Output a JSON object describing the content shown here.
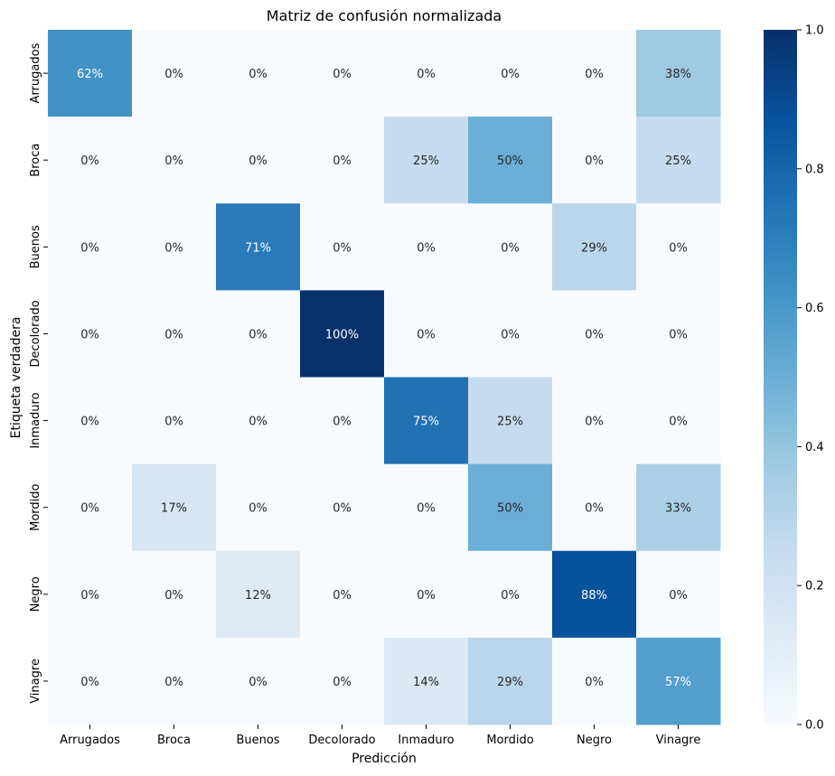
{
  "chart_data": {
    "type": "heatmap",
    "title": "Matriz de confusión normalizada",
    "xlabel": "Predicción",
    "ylabel": "Etiqueta verdadera",
    "x_categories": [
      "Arrugados",
      "Broca",
      "Buenos",
      "Decolorado",
      "Inmaduro",
      "Mordido",
      "Negro",
      "Vinagre"
    ],
    "y_categories": [
      "Arrugados",
      "Broca",
      "Buenos",
      "Decolorado",
      "Inmaduro",
      "Mordido",
      "Negro",
      "Vinagre"
    ],
    "values": [
      [
        0.625,
        0,
        0,
        0,
        0,
        0,
        0,
        0.375
      ],
      [
        0,
        0,
        0,
        0,
        0.25,
        0.5,
        0,
        0.25
      ],
      [
        0,
        0,
        0.714,
        0,
        0,
        0,
        0.286,
        0
      ],
      [
        0,
        0,
        0,
        1.0,
        0,
        0,
        0,
        0
      ],
      [
        0,
        0,
        0,
        0,
        0.75,
        0.25,
        0,
        0
      ],
      [
        0,
        0.167,
        0,
        0,
        0,
        0.5,
        0,
        0.333
      ],
      [
        0,
        0,
        0.125,
        0,
        0,
        0,
        0.875,
        0
      ],
      [
        0,
        0,
        0,
        0,
        0.143,
        0.286,
        0,
        0.571
      ]
    ],
    "annotations": [
      [
        "62%",
        "0%",
        "0%",
        "0%",
        "0%",
        "0%",
        "0%",
        "38%"
      ],
      [
        "0%",
        "0%",
        "0%",
        "0%",
        "25%",
        "50%",
        "0%",
        "25%"
      ],
      [
        "0%",
        "0%",
        "71%",
        "0%",
        "0%",
        "0%",
        "29%",
        "0%"
      ],
      [
        "0%",
        "0%",
        "0%",
        "100%",
        "0%",
        "0%",
        "0%",
        "0%"
      ],
      [
        "0%",
        "0%",
        "0%",
        "0%",
        "75%",
        "25%",
        "0%",
        "0%"
      ],
      [
        "0%",
        "17%",
        "0%",
        "0%",
        "0%",
        "50%",
        "0%",
        "33%"
      ],
      [
        "0%",
        "0%",
        "12%",
        "0%",
        "0%",
        "0%",
        "88%",
        "0%"
      ],
      [
        "0%",
        "0%",
        "0%",
        "0%",
        "14%",
        "29%",
        "0%",
        "57%"
      ]
    ],
    "colorbar": {
      "range": [
        0,
        1
      ],
      "ticks": [
        0.0,
        0.2,
        0.4,
        0.6,
        0.8,
        1.0
      ],
      "tick_labels": [
        "0.0",
        "0.2",
        "0.4",
        "0.6",
        "0.8",
        "1.0"
      ]
    },
    "colormap": [
      "#f7fbff",
      "#deebf7",
      "#c6dbef",
      "#9ecae1",
      "#6baed6",
      "#4292c6",
      "#2171b5",
      "#08519c",
      "#08306b"
    ]
  }
}
